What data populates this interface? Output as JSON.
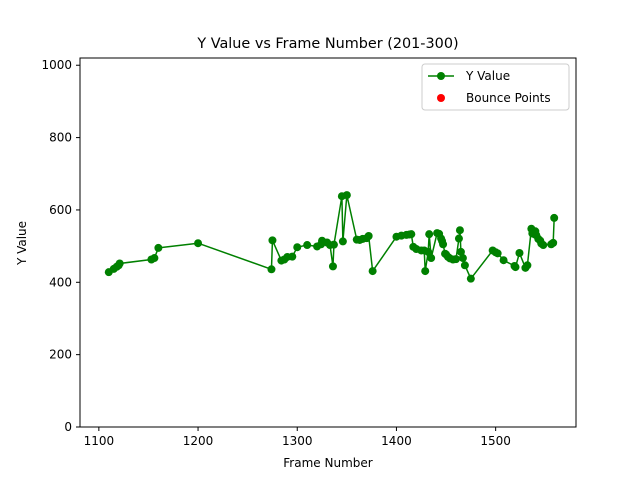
{
  "chart_data": {
    "type": "line",
    "title": "Y Value vs Frame Number (201-300)",
    "xlabel": "Frame Number",
    "ylabel": "Y Value",
    "xlim": [
      1081,
      1581
    ],
    "ylim": [
      0,
      1020
    ],
    "xticks": [
      1100,
      1200,
      1300,
      1400,
      1500
    ],
    "yticks": [
      0,
      200,
      400,
      600,
      800,
      1000
    ],
    "grid": false,
    "legend_position": "top-right",
    "series": [
      {
        "name": "Y Value",
        "color": "#008000",
        "marker": "circle",
        "points": [
          [
            1110,
            428
          ],
          [
            1115,
            437
          ],
          [
            1118,
            443
          ],
          [
            1120,
            447
          ],
          [
            1121,
            452
          ],
          [
            1153,
            463
          ],
          [
            1156,
            467
          ],
          [
            1160,
            495
          ],
          [
            1200,
            508
          ],
          [
            1274,
            436
          ],
          [
            1275,
            516
          ],
          [
            1284,
            460
          ],
          [
            1287,
            463
          ],
          [
            1290,
            470
          ],
          [
            1295,
            471
          ],
          [
            1300,
            497
          ],
          [
            1310,
            503
          ],
          [
            1320,
            499
          ],
          [
            1324,
            505
          ],
          [
            1325,
            515
          ],
          [
            1330,
            510
          ],
          [
            1333,
            503
          ],
          [
            1336,
            444
          ],
          [
            1337,
            504
          ],
          [
            1345,
            638
          ],
          [
            1346,
            513
          ],
          [
            1350,
            641
          ],
          [
            1360,
            518
          ],
          [
            1363,
            517
          ],
          [
            1366,
            520
          ],
          [
            1370,
            522
          ],
          [
            1372,
            528
          ],
          [
            1376,
            431
          ],
          [
            1400,
            526
          ],
          [
            1405,
            529
          ],
          [
            1410,
            531
          ],
          [
            1413,
            532
          ],
          [
            1415,
            533
          ],
          [
            1417,
            498
          ],
          [
            1420,
            492
          ],
          [
            1425,
            488
          ],
          [
            1428,
            488
          ],
          [
            1429,
            431
          ],
          [
            1432,
            484
          ],
          [
            1433,
            533
          ],
          [
            1435,
            467
          ],
          [
            1441,
            536
          ],
          [
            1443,
            534
          ],
          [
            1445,
            521
          ],
          [
            1446,
            514
          ],
          [
            1447,
            505
          ],
          [
            1449,
            479
          ],
          [
            1450,
            477
          ],
          [
            1452,
            470
          ],
          [
            1454,
            466
          ],
          [
            1457,
            463
          ],
          [
            1460,
            464
          ],
          [
            1463,
            521
          ],
          [
            1464,
            544
          ],
          [
            1465,
            484
          ],
          [
            1467,
            467
          ],
          [
            1469,
            447
          ],
          [
            1475,
            410
          ],
          [
            1497,
            488
          ],
          [
            1500,
            483
          ],
          [
            1502,
            480
          ],
          [
            1508,
            461
          ],
          [
            1519,
            445
          ],
          [
            1520,
            442
          ],
          [
            1524,
            481
          ],
          [
            1530,
            440
          ],
          [
            1532,
            447
          ],
          [
            1536,
            548
          ],
          [
            1537,
            535
          ],
          [
            1539,
            533
          ],
          [
            1540,
            541
          ],
          [
            1541,
            530
          ],
          [
            1543,
            520
          ],
          [
            1545,
            515
          ],
          [
            1546,
            507
          ],
          [
            1548,
            503
          ],
          [
            1556,
            505
          ],
          [
            1558,
            509
          ],
          [
            1559,
            578
          ]
        ]
      },
      {
        "name": "Bounce Points",
        "color": "#ff0000",
        "marker": "circle",
        "points": []
      }
    ]
  }
}
